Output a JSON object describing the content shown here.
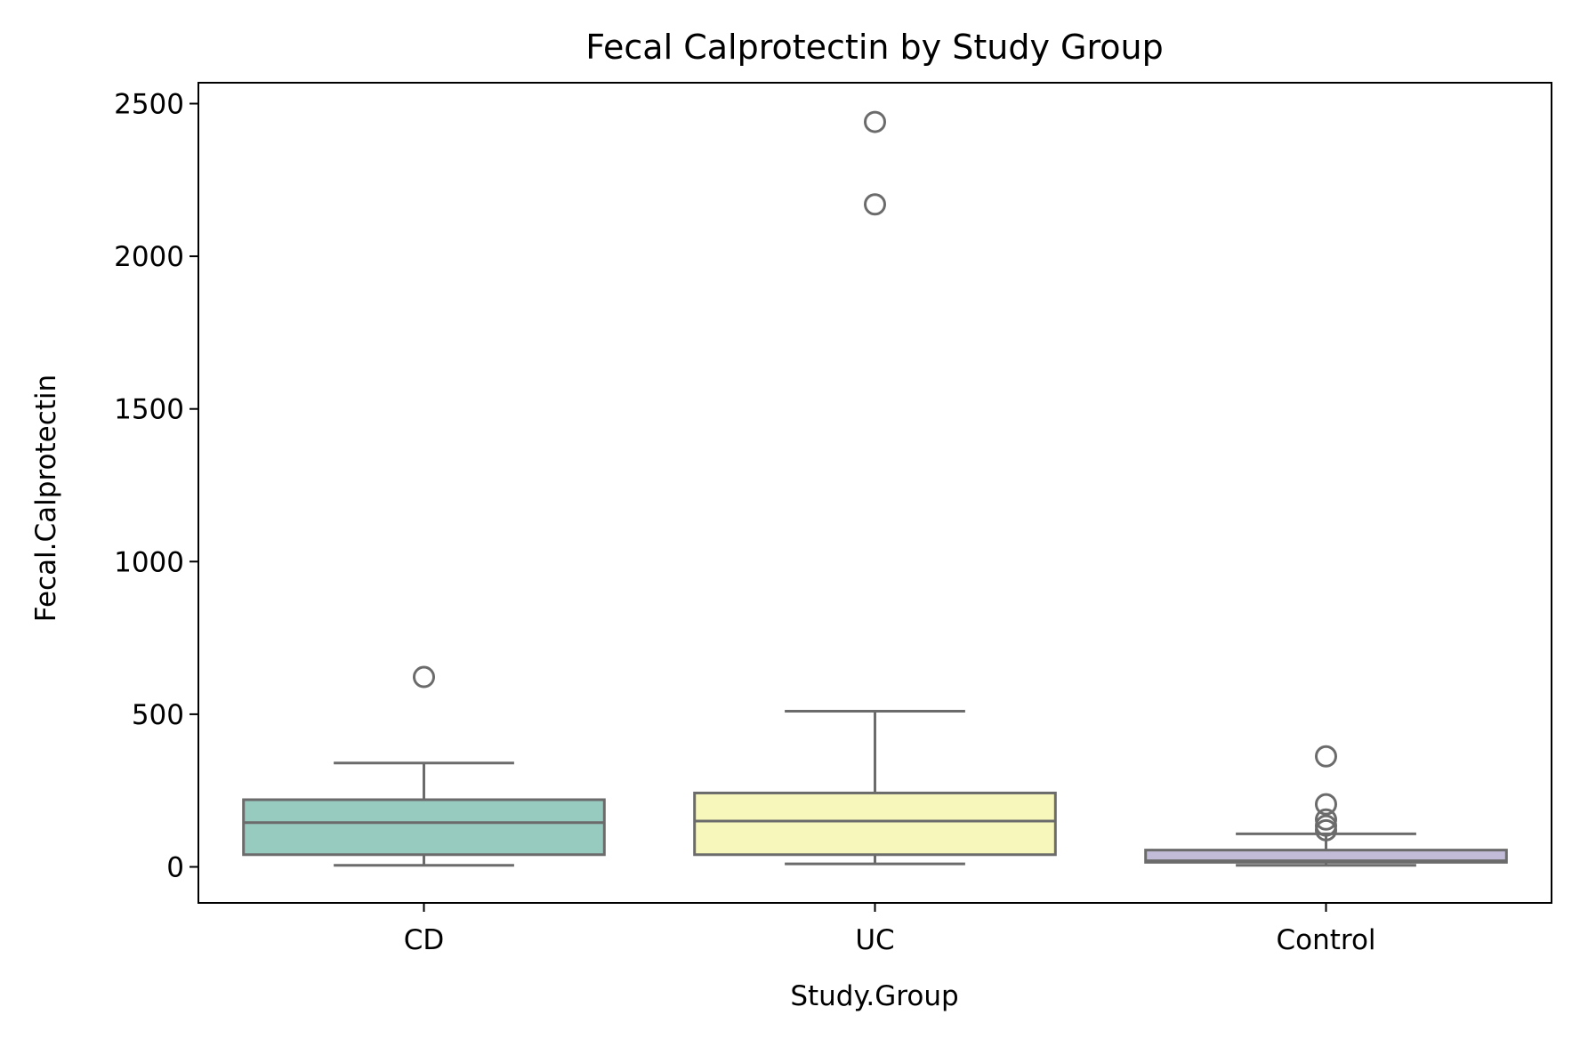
{
  "chart_data": {
    "type": "box",
    "title": "Fecal Calprotectin by Study Group",
    "xlabel": "Study.Group",
    "ylabel": "Fecal.Calprotectin",
    "ylim": [
      -120,
      2570
    ],
    "yticks": [
      0,
      500,
      1000,
      1500,
      2000,
      2500
    ],
    "grid": false,
    "groups": [
      {
        "name": "CD",
        "color": "#97cbc0",
        "whisker_low": 5,
        "q1": 40,
        "median": 145,
        "q3": 220,
        "whisker_high": 340,
        "outliers": [
          622
        ]
      },
      {
        "name": "UC",
        "color": "#f7f7bb",
        "whisker_low": 10,
        "q1": 40,
        "median": 150,
        "q3": 242,
        "whisker_high": 510,
        "outliers": [
          2170,
          2440
        ]
      },
      {
        "name": "Control",
        "color": "#c2bcd8",
        "whisker_low": 5,
        "q1": 15,
        "median": 20,
        "q3": 55,
        "whisker_high": 108,
        "outliers": [
          120,
          135,
          155,
          205,
          362
        ]
      }
    ]
  }
}
